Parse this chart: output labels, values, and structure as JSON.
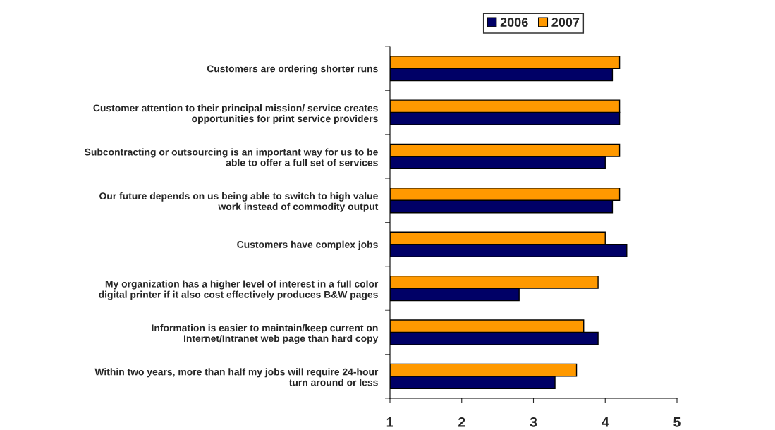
{
  "chart_data": {
    "type": "bar",
    "orientation": "horizontal",
    "categories": [
      "Customers are ordering shorter runs",
      "Customer attention to their principal mission/ service creates\nopportunities for print service providers",
      "Subcontracting or outsourcing is an important way for us to be\nable to offer a full set of services",
      "Our future depends on us being able to switch to high value\nwork instead of commodity output",
      "Customers have complex jobs",
      "My organization has a higher level of interest in a full color\ndigital printer if it also cost effectively produces B&W pages",
      "Information is easier to maintain/keep current on\nInternet/Intranet web page than hard copy",
      "Within two years, more than half my jobs will require 24-hour\nturn around or less"
    ],
    "series": [
      {
        "name": "2006",
        "color": "#000066",
        "values": [
          4.1,
          4.2,
          4.0,
          4.1,
          4.3,
          2.8,
          3.9,
          3.3
        ]
      },
      {
        "name": "2007",
        "color": "#ff9900",
        "values": [
          4.2,
          4.2,
          4.2,
          4.2,
          4.0,
          3.9,
          3.7,
          3.6
        ]
      }
    ],
    "xlim": [
      1,
      5
    ],
    "xticks": [
      1,
      2,
      3,
      4,
      5
    ],
    "grid": false,
    "legend": "top"
  }
}
